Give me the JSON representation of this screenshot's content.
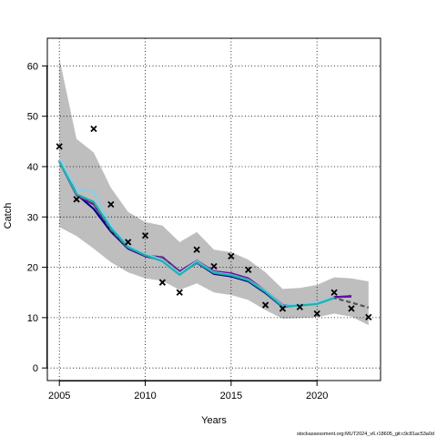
{
  "chart_data": {
    "type": "line",
    "title": "",
    "xlabel": "Years",
    "ylabel": "Catch",
    "xlim": [
      2004.3,
      2023.7
    ],
    "ylim": [
      -2.5,
      65.5
    ],
    "xticks": [
      2005,
      2010,
      2015,
      2020
    ],
    "yticks": [
      0,
      10,
      20,
      30,
      40,
      50,
      60
    ],
    "grid": true,
    "x": [
      2005,
      2006,
      2007,
      2008,
      2009,
      2010,
      2011,
      2012,
      2013,
      2014,
      2015,
      2016,
      2017,
      2018,
      2019,
      2020,
      2021,
      2022,
      2023
    ],
    "band": {
      "upper": [
        61.5,
        45.5,
        42.8,
        35.8,
        31.0,
        29.0,
        28.3,
        25.0,
        27.0,
        23.5,
        23.0,
        21.5,
        19.0,
        15.7,
        15.9,
        16.5,
        18.0,
        17.8,
        17.2
      ],
      "lower": [
        28.0,
        26.2,
        23.7,
        21.0,
        19.0,
        17.8,
        17.3,
        15.5,
        16.8,
        15.0,
        14.5,
        13.5,
        11.5,
        9.8,
        9.9,
        10.1,
        10.8,
        10.2,
        8.5
      ],
      "color": "#bebebe"
    },
    "series": [
      {
        "values": [
          41.3,
          34.5,
          31.6,
          27.1,
          23.7,
          22.2,
          21.4,
          18.6,
          20.9,
          18.7,
          18.2,
          17.2,
          14.9,
          12.1,
          12.5,
          12.8,
          14.1,
          14.2,
          null
        ],
        "color": "#00008b",
        "dash": ""
      },
      {
        "values": [
          41.0,
          34.3,
          32.5,
          27.6,
          23.8,
          22.3,
          22.0,
          19.2,
          21.3,
          19.2,
          18.8,
          17.8,
          15.3,
          12.5,
          12.5,
          12.8,
          14.0,
          14.3,
          null
        ],
        "color": "#6a0dad",
        "dash": ""
      },
      {
        "values": [
          41.2,
          34.4,
          32.7,
          27.4,
          23.9,
          22.4,
          21.9,
          19.0,
          21.2,
          19.0,
          18.6,
          17.6,
          15.2,
          12.3,
          12.6,
          12.9,
          13.9,
          13.0,
          12.0
        ],
        "color": "#555555",
        "dash": "5,3"
      },
      {
        "values": [
          41.5,
          35.5,
          35.0,
          28.2,
          24.2,
          22.6,
          21.5,
          18.8,
          21.2,
          19.0,
          18.5,
          17.5,
          15.3,
          12.4,
          12.6,
          13.0,
          14.1,
          null,
          null
        ],
        "color": "#87ceeb",
        "dash": ""
      },
      {
        "values": [
          41.0,
          34.5,
          33.0,
          27.8,
          24.0,
          22.4,
          21.2,
          18.5,
          21.0,
          18.9,
          18.4,
          17.4,
          15.1,
          12.2,
          12.4,
          12.7,
          13.9,
          null,
          null
        ],
        "color": "#20b2aa",
        "dash": ""
      }
    ],
    "observed": {
      "x": [
        2005,
        2006,
        2007,
        2008,
        2009,
        2010,
        2011,
        2012,
        2013,
        2014,
        2015,
        2016,
        2017,
        2018,
        2019,
        2020,
        2021,
        2022,
        2023
      ],
      "y": [
        44.0,
        33.5,
        47.5,
        32.5,
        25.0,
        26.3,
        17.0,
        15.0,
        23.5,
        20.2,
        22.2,
        19.5,
        12.5,
        11.8,
        12.1,
        10.8,
        15.0,
        11.8,
        10.1
      ]
    }
  },
  "footer": "stockassessment.org:MUT2024_v6.r18605_git:c9c81ac53a0d"
}
